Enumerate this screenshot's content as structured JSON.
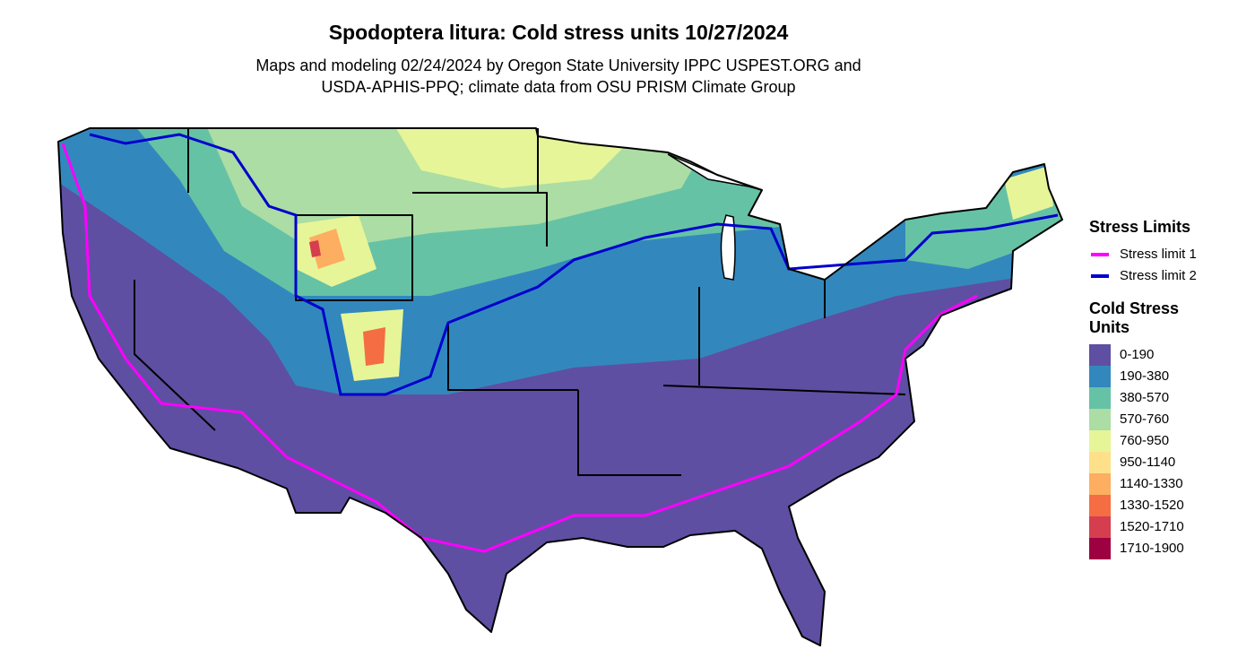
{
  "title": "Spodoptera litura: Cold stress units 10/27/2024",
  "subtitle": [
    "Maps and modeling 02/24/2024 by Oregon State University IPPC USPEST.ORG and",
    "USDA-APHIS-PPQ; climate data from OSU PRISM Climate Group"
  ],
  "legend": {
    "stress_title": "Stress Limits",
    "stress_limits": [
      {
        "label": "Stress limit 1",
        "color": "#ff00ff"
      },
      {
        "label": "Stress limit 2",
        "color": "#0000cc"
      }
    ],
    "units_title": [
      "Cold Stress",
      "Units"
    ],
    "bins": [
      {
        "label": "0-190",
        "color": "#5e4fa2"
      },
      {
        "label": "190-380",
        "color": "#3288bd"
      },
      {
        "label": "380-570",
        "color": "#66c2a5"
      },
      {
        "label": "570-760",
        "color": "#abdda4"
      },
      {
        "label": "760-950",
        "color": "#e6f598"
      },
      {
        "label": "950-1140",
        "color": "#fee08b"
      },
      {
        "label": "1140-1330",
        "color": "#fdae61"
      },
      {
        "label": "1330-1520",
        "color": "#f46d43"
      },
      {
        "label": "1520-1710",
        "color": "#d53e4f"
      },
      {
        "label": "1710-1900",
        "color": "#9e0142"
      }
    ]
  }
}
